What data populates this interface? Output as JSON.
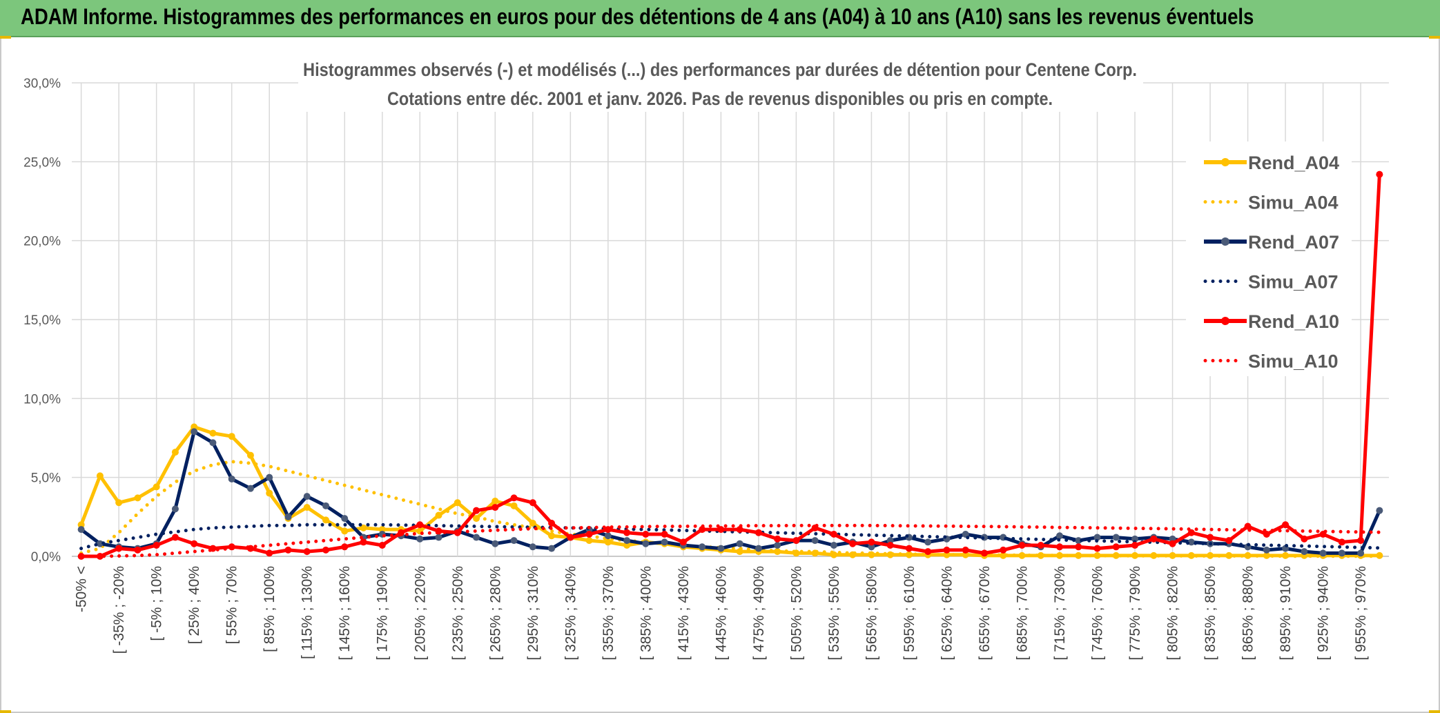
{
  "banner": {
    "title": "ADAM Informe. Histogrammes des performances en euros pour des détentions de 4 ans (A04) à 10 ans (A10) sans les revenus éventuels"
  },
  "colors": {
    "a04": "#ffc000",
    "a07": "#002060",
    "a10": "#ff0000",
    "banner": "#7cc67c",
    "grid": "#d9d9d9",
    "text": "#595959"
  },
  "chart_data": {
    "type": "line",
    "title": "Histogrammes observés (-) et modélisés (...) des performances par durées de détention pour Centene Corp.",
    "subtitle": "Cotations entre déc. 2001 et janv. 2026. Pas de revenus disponibles ou pris en compte.",
    "xlabel": "",
    "ylabel": "",
    "ylim": [
      0,
      30
    ],
    "yticks": [
      "0,0%",
      "5,0%",
      "10,0%",
      "15,0%",
      "20,0%",
      "25,0%",
      "30,0%"
    ],
    "grid": true,
    "legend_position": "right",
    "x_tick_labels": [
      "-50% <",
      "[ -35% ; -20%",
      "[ -5% ; 10%",
      "[ 25% ; 40%",
      "[ 55% ; 70%",
      "[ 85% ; 100%",
      "[ 115% ; 130%",
      "[ 145% ; 160%",
      "[ 175% ; 190%",
      "[ 205% ; 220%",
      "[ 235% ; 250%",
      "[ 265% ; 280%",
      "[ 295% ; 310%",
      "[ 325% ; 340%",
      "[ 355% ; 370%",
      "[ 385% ; 400%",
      "[ 415% ; 430%",
      "[ 445% ; 460%",
      "[ 475% ; 490%",
      "[ 505% ; 520%",
      "[ 535% ; 550%",
      "[ 565% ; 580%",
      "[ 595% ; 610%",
      "[ 625% ; 640%",
      "[ 655% ; 670%",
      "[ 685% ; 700%",
      "[ 715% ; 730%",
      "[ 745% ; 760%",
      "[ 775% ; 790%",
      "[ 805% ; 820%",
      "[ 835% ; 850%",
      "[ 865% ; 880%",
      "[ 895% ; 910%",
      "[ 925% ; 940%",
      "[ 955% ; 970%"
    ],
    "series": [
      {
        "name": "Rend_A04",
        "style": "solid-marker",
        "color": "#ffc000",
        "values": [
          2.0,
          5.1,
          3.4,
          3.7,
          4.4,
          6.6,
          8.2,
          7.8,
          7.6,
          6.4,
          4.0,
          2.4,
          3.1,
          2.3,
          1.6,
          1.8,
          1.7,
          1.7,
          1.6,
          2.6,
          3.4,
          2.4,
          3.5,
          3.2,
          2.1,
          1.3,
          1.2,
          1.0,
          0.9,
          0.7,
          0.9,
          0.8,
          0.6,
          0.5,
          0.4,
          0.3,
          0.3,
          0.3,
          0.2,
          0.2,
          0.1,
          0.1,
          0.1,
          0.1,
          0.1,
          0.1,
          0.1,
          0.1,
          0.05,
          0.05,
          0.05,
          0.05,
          0.05,
          0.05,
          0.05,
          0.05,
          0.05,
          0.05,
          0.05,
          0.05,
          0.05,
          0.05,
          0.05,
          0.05,
          0.05,
          0.05,
          0.05,
          0.05,
          0.05,
          0.05
        ]
      },
      {
        "name": "Simu_A04",
        "style": "dotted",
        "color": "#ffc000",
        "values": [
          0.2,
          0.5,
          1.5,
          2.7,
          3.8,
          4.7,
          5.4,
          5.8,
          6.0,
          5.9,
          5.7,
          5.4,
          5.1,
          4.8,
          4.5,
          4.2,
          3.9,
          3.6,
          3.3,
          3.0,
          2.7,
          2.5,
          2.2,
          2.0,
          1.8,
          1.6,
          1.4,
          1.3,
          1.1,
          1.0,
          0.9,
          0.8,
          0.7,
          0.6,
          0.55,
          0.5,
          0.4,
          0.35,
          0.3,
          0.3,
          0.25,
          0.2,
          0.2,
          0.15,
          0.15,
          0.1,
          0.1,
          0.1,
          0.1,
          0.08,
          0.07,
          0.06,
          0.05,
          0.05,
          0.04,
          0.04,
          0.03,
          0.03,
          0.03,
          0.02,
          0.02,
          0.02,
          0.02,
          0.02,
          0.01,
          0.01,
          0.01,
          0.01,
          0.01,
          0.01
        ]
      },
      {
        "name": "Rend_A07",
        "style": "solid-marker",
        "color": "#002060",
        "values": [
          1.7,
          0.8,
          0.6,
          0.5,
          0.8,
          3.0,
          7.9,
          7.2,
          4.9,
          4.3,
          5.0,
          2.5,
          3.8,
          3.2,
          2.4,
          1.2,
          1.4,
          1.3,
          1.1,
          1.2,
          1.6,
          1.2,
          0.8,
          1.0,
          0.6,
          0.5,
          1.2,
          1.7,
          1.3,
          1.0,
          0.8,
          0.9,
          0.7,
          0.6,
          0.5,
          0.8,
          0.5,
          0.7,
          1.0,
          1.0,
          0.7,
          0.9,
          0.6,
          1.0,
          1.2,
          0.9,
          1.1,
          1.4,
          1.2,
          1.2,
          0.8,
          0.6,
          1.3,
          1.0,
          1.2,
          1.2,
          1.1,
          1.2,
          1.1,
          0.9,
          0.8,
          0.8,
          0.6,
          0.4,
          0.5,
          0.3,
          0.2,
          0.2,
          0.2,
          2.9
        ]
      },
      {
        "name": "Simu_A07",
        "style": "dotted",
        "color": "#002060",
        "values": [
          0.5,
          0.8,
          1.0,
          1.2,
          1.4,
          1.55,
          1.7,
          1.8,
          1.85,
          1.9,
          1.95,
          1.95,
          2.0,
          2.0,
          2.0,
          2.0,
          2.0,
          1.98,
          1.96,
          1.94,
          1.92,
          1.9,
          1.88,
          1.86,
          1.84,
          1.82,
          1.8,
          1.78,
          1.75,
          1.72,
          1.7,
          1.67,
          1.64,
          1.61,
          1.58,
          1.55,
          1.52,
          1.49,
          1.46,
          1.43,
          1.4,
          1.37,
          1.34,
          1.31,
          1.28,
          1.25,
          1.22,
          1.19,
          1.16,
          1.13,
          1.1,
          1.07,
          1.04,
          1.01,
          0.98,
          0.95,
          0.92,
          0.89,
          0.86,
          0.83,
          0.8,
          0.77,
          0.74,
          0.71,
          0.68,
          0.65,
          0.62,
          0.59,
          0.56,
          0.53
        ]
      },
      {
        "name": "Rend_A10",
        "style": "solid-marker",
        "color": "#ff0000",
        "values": [
          0.0,
          0.0,
          0.5,
          0.4,
          0.7,
          1.2,
          0.8,
          0.5,
          0.6,
          0.5,
          0.2,
          0.4,
          0.3,
          0.4,
          0.6,
          0.9,
          0.7,
          1.5,
          2.0,
          1.6,
          1.5,
          2.9,
          3.1,
          3.7,
          3.4,
          2.1,
          1.2,
          1.4,
          1.7,
          1.5,
          1.4,
          1.4,
          0.9,
          1.7,
          1.7,
          1.7,
          1.5,
          1.1,
          1.0,
          1.8,
          1.4,
          0.8,
          0.9,
          0.7,
          0.5,
          0.3,
          0.4,
          0.4,
          0.2,
          0.4,
          0.7,
          0.7,
          0.6,
          0.6,
          0.5,
          0.6,
          0.7,
          1.1,
          0.8,
          1.5,
          1.2,
          1.0,
          1.9,
          1.4,
          2.0,
          1.1,
          1.4,
          0.9,
          1.0,
          24.2
        ]
      },
      {
        "name": "Simu_A10",
        "style": "dotted",
        "color": "#ff0000",
        "values": [
          0.0,
          0.0,
          0.02,
          0.05,
          0.1,
          0.2,
          0.3,
          0.4,
          0.5,
          0.6,
          0.7,
          0.8,
          0.9,
          1.0,
          1.1,
          1.2,
          1.3,
          1.35,
          1.45,
          1.5,
          1.55,
          1.6,
          1.65,
          1.7,
          1.75,
          1.78,
          1.8,
          1.82,
          1.85,
          1.86,
          1.88,
          1.9,
          1.9,
          1.91,
          1.92,
          1.93,
          1.94,
          1.94,
          1.95,
          1.95,
          1.95,
          1.95,
          1.95,
          1.94,
          1.93,
          1.92,
          1.91,
          1.9,
          1.89,
          1.88,
          1.86,
          1.85,
          1.83,
          1.82,
          1.8,
          1.79,
          1.77,
          1.76,
          1.74,
          1.72,
          1.7,
          1.68,
          1.66,
          1.64,
          1.62,
          1.6,
          1.58,
          1.56,
          1.54,
          1.52
        ]
      }
    ]
  }
}
